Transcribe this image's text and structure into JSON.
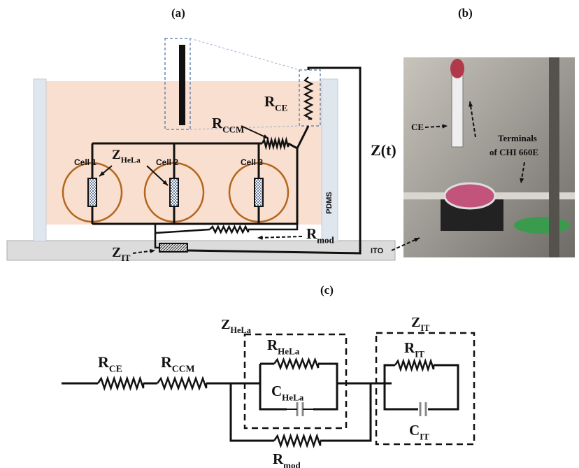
{
  "panel_a": {
    "caption": "(a)",
    "r_ccm": {
      "main": "R",
      "sub": "CCM"
    },
    "r_ce": {
      "main": "R",
      "sub": "CE"
    },
    "z_hela": {
      "main": "Z",
      "sub": "HeLa"
    },
    "cells": [
      "Cell 1",
      "Cell 2",
      "Cell 3"
    ],
    "pdms": "PDMS",
    "z_t": "Z(t)",
    "r_mod": {
      "main": "R",
      "sub": "mod"
    },
    "z_it": {
      "main": "Z",
      "sub": "IT"
    }
  },
  "panel_b": {
    "caption": "(b)",
    "ce": "CE",
    "terminals": [
      "Terminals",
      "of CHI 660E"
    ],
    "ito": "ITO"
  },
  "panel_c": {
    "caption": "(c)",
    "r_ce": {
      "main": "R",
      "sub": "CE"
    },
    "r_ccm": {
      "main": "R",
      "sub": "CCM"
    },
    "z_hela": {
      "main": "Z",
      "sub": "HeLa"
    },
    "r_hela": {
      "main": "R",
      "sub": "HeLa"
    },
    "c_hela": {
      "main": "C",
      "sub": "HeLa"
    },
    "z_it": {
      "main": "Z",
      "sub": "IT"
    },
    "r_it": {
      "main": "R",
      "sub": "IT"
    },
    "c_it": {
      "main": "C",
      "sub": "IT"
    },
    "r_mod": {
      "main": "R",
      "sub": "mod"
    }
  }
}
